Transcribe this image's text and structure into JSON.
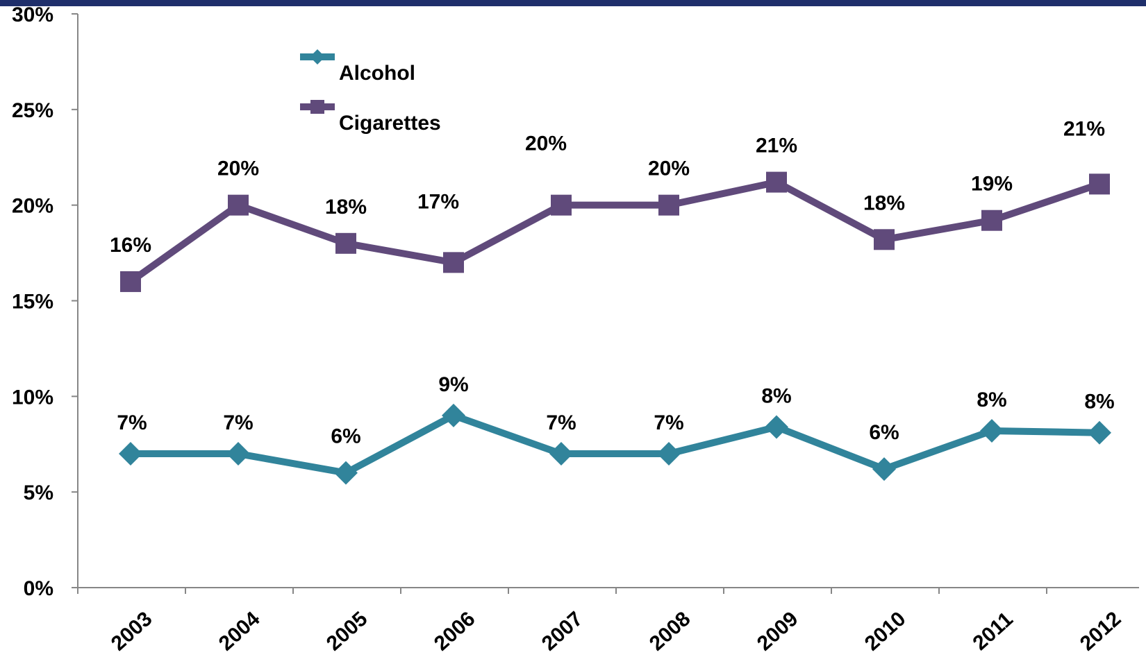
{
  "chart_data": {
    "type": "line",
    "title": "",
    "xlabel": "",
    "ylabel": "",
    "categories": [
      "2003",
      "2004",
      "2005",
      "2006",
      "2007",
      "2008",
      "2009",
      "2010",
      "2011",
      "2012"
    ],
    "ylim": [
      0,
      30
    ],
    "yticks": [
      0,
      5,
      10,
      15,
      20,
      25,
      30
    ],
    "ytick_labels": [
      "0%",
      "5%",
      "10%",
      "15%",
      "20%",
      "25%",
      "30%"
    ],
    "grid": false,
    "legend_position": "top-left",
    "series": [
      {
        "name": "Alcohol",
        "color": "#31849b",
        "marker": "diamond",
        "values": [
          7,
          7,
          6,
          9,
          7,
          7,
          8.4,
          6.2,
          8.2,
          8.1
        ],
        "labels": [
          "7%",
          "7%",
          "6%",
          "9%",
          "7%",
          "7%",
          "8%",
          "6%",
          "8%",
          "8%"
        ]
      },
      {
        "name": "Cigarettes",
        "color": "#604a7b",
        "marker": "square",
        "values": [
          16,
          20,
          18,
          17,
          20,
          20,
          21.2,
          18.2,
          19.2,
          21.1
        ],
        "labels": [
          "16%",
          "20%",
          "18%",
          "17%",
          "20%",
          "20%",
          "21%",
          "18%",
          "19%",
          "21%"
        ]
      }
    ]
  }
}
